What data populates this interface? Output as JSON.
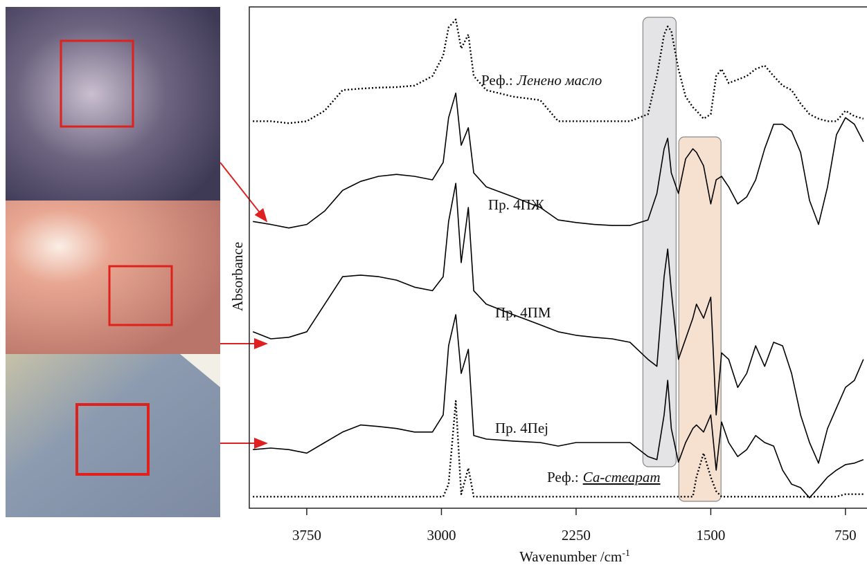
{
  "chart_data": {
    "type": "line",
    "xlabel": "Wavenumber /cm",
    "xlabel_sup": "-1",
    "ylabel": "Absorbance",
    "xlim": [
      4070,
      630
    ],
    "ylim": [
      0,
      100
    ],
    "xticks": [
      3750,
      3000,
      2250,
      1500,
      750
    ],
    "highlights": [
      {
        "from": 1878,
        "to": 1693,
        "color": "#e4e4e6"
      },
      {
        "from": 1678,
        "to": 1443,
        "color": "#f6e0cf"
      }
    ],
    "x": [
      4050,
      3950,
      3850,
      3750,
      3650,
      3550,
      3450,
      3350,
      3250,
      3150,
      3050,
      2990,
      2960,
      2920,
      2890,
      2850,
      2820,
      2750,
      2600,
      2450,
      2350,
      2250,
      2150,
      2050,
      1950,
      1850,
      1800,
      1760,
      1740,
      1720,
      1680,
      1640,
      1600,
      1580,
      1540,
      1500,
      1470,
      1440,
      1400,
      1350,
      1300,
      1250,
      1200,
      1150,
      1100,
      1050,
      1000,
      950,
      900,
      850,
      800,
      750,
      700,
      650
    ],
    "series": [
      {
        "name": "Реф.:",
        "name_italic": "Ленено масло",
        "color": "#000000",
        "style": "dotted",
        "values": [
          77.2,
          77.2,
          76.8,
          77.2,
          79.3,
          83.4,
          83.7,
          83.9,
          84.0,
          84.3,
          86.2,
          90.3,
          95.9,
          97.5,
          91.7,
          94.5,
          86.2,
          83.4,
          82.1,
          81.4,
          77.2,
          77.2,
          77.2,
          77.2,
          77.2,
          78.6,
          86.2,
          94.5,
          96.1,
          95.2,
          87.6,
          82.1,
          80.0,
          79.3,
          77.7,
          78.6,
          86.2,
          87.6,
          84.8,
          85.5,
          86.2,
          87.6,
          88.3,
          86.2,
          84.3,
          83.4,
          80.7,
          78.6,
          77.7,
          77.2,
          77.2,
          79.3,
          78.2,
          77.7
        ]
      },
      {
        "name": "Пр. 4ПЖ",
        "color": "#000000",
        "style": "solid",
        "values": [
          57.2,
          56.6,
          55.9,
          56.6,
          59.3,
          63.4,
          65.2,
          66.2,
          66.6,
          66.2,
          65.5,
          69.0,
          77.9,
          82.8,
          72.4,
          75.9,
          66.9,
          64.1,
          62.1,
          60.0,
          57.5,
          57.0,
          56.6,
          56.4,
          56.4,
          57.5,
          62.8,
          71.7,
          73.8,
          66.9,
          62.8,
          69.7,
          71.7,
          71.0,
          68.3,
          60.7,
          65.5,
          66.2,
          64.1,
          60.7,
          62.1,
          65.5,
          71.7,
          76.6,
          76.6,
          75.2,
          71.0,
          61.4,
          56.6,
          64.1,
          74.5,
          77.9,
          76.6,
          73.1
        ]
      },
      {
        "name": "Пр. 4ПМ",
        "color": "#000000",
        "style": "solid",
        "values": [
          35.2,
          33.8,
          34.1,
          35.2,
          40.7,
          46.2,
          46.5,
          46.2,
          45.5,
          44.1,
          43.4,
          46.2,
          57.2,
          64.8,
          49.0,
          60.0,
          43.4,
          40.7,
          38.6,
          36.6,
          35.2,
          34.5,
          34.1,
          33.8,
          33.1,
          29.7,
          28.3,
          46.2,
          51.7,
          43.4,
          29.7,
          33.8,
          37.9,
          40.7,
          37.9,
          42.1,
          18.6,
          31.0,
          29.7,
          24.1,
          26.9,
          32.4,
          28.3,
          33.1,
          32.4,
          26.9,
          18.6,
          13.1,
          9.0,
          15.9,
          20.0,
          24.1,
          25.5,
          29.7
        ]
      },
      {
        "name": "Пр. 4Пеj",
        "color": "#000000",
        "style": "solid",
        "values": [
          11.7,
          12.0,
          11.7,
          11.0,
          13.1,
          15.2,
          16.6,
          16.3,
          15.9,
          15.2,
          15.2,
          18.6,
          32.4,
          38.6,
          26.9,
          31.7,
          14.5,
          13.8,
          13.4,
          13.1,
          12.4,
          13.1,
          13.1,
          13.1,
          13.1,
          10.3,
          9.7,
          18.6,
          25.5,
          15.9,
          9.2,
          13.1,
          15.9,
          16.6,
          15.2,
          18.6,
          7.6,
          17.2,
          13.1,
          10.3,
          11.7,
          14.5,
          13.1,
          12.4,
          7.6,
          4.8,
          4.1,
          2.1,
          4.1,
          6.2,
          7.6,
          8.7,
          9.0,
          9.7
        ]
      },
      {
        "name": "Реф.:",
        "name_italic": "Са-стеарат",
        "color": "#000000",
        "style": "dotted",
        "values": [
          2.3,
          2.3,
          2.3,
          2.3,
          2.3,
          2.3,
          2.3,
          2.3,
          2.3,
          2.3,
          2.3,
          2.3,
          4.8,
          21.4,
          2.8,
          8.0,
          2.3,
          2.3,
          2.3,
          2.3,
          2.3,
          2.3,
          2.3,
          2.3,
          2.3,
          2.3,
          2.3,
          2.3,
          2.3,
          2.3,
          2.3,
          2.3,
          2.3,
          6.2,
          11.0,
          6.2,
          3.4,
          2.3,
          2.3,
          2.3,
          2.3,
          2.3,
          2.3,
          2.3,
          2.3,
          2.3,
          2.3,
          2.3,
          2.3,
          2.3,
          2.3,
          2.8,
          2.8,
          2.8
        ]
      }
    ]
  }
}
